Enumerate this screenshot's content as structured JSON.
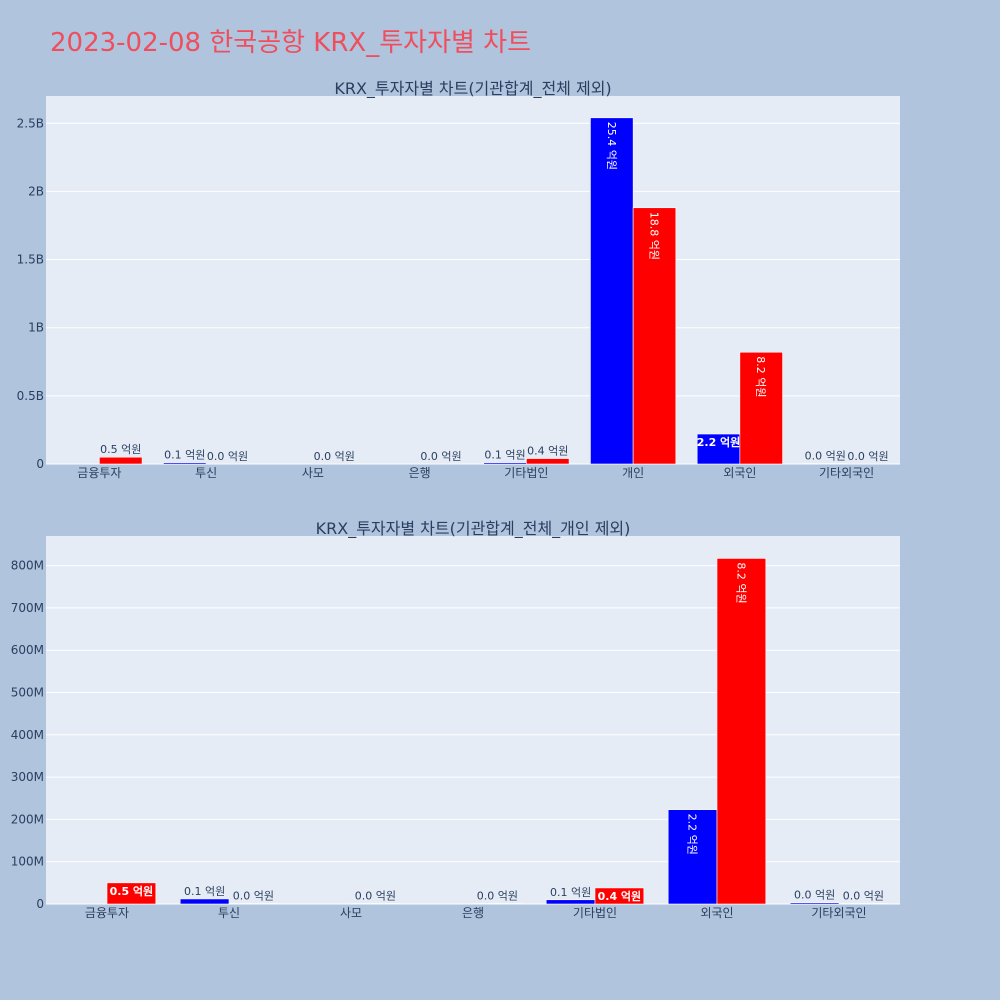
{
  "page": {
    "title": "2023-02-08 한국공항 KRX_투자자별 차트"
  },
  "colors": {
    "background": "#b0c4de",
    "plot_bg": "#e5ecf6",
    "grid": "#ffffff",
    "buy": "#0000ff",
    "sell": "#ff0000",
    "title": "#ef4e5d",
    "text": "#2a3f5f"
  },
  "chart_data": [
    {
      "type": "bar",
      "title": "KRX_투자자별 차트(기관합계_전체 제외)",
      "categories": [
        "금융투자",
        "투신",
        "사모",
        "은행",
        "기타법인",
        "개인",
        "외국인",
        "기타외국인"
      ],
      "series": [
        {
          "color": "#0000ff",
          "values": [
            0,
            10000000,
            0,
            0,
            10000000,
            2540000000,
            220000000,
            3000000
          ],
          "labels": [
            "",
            "0.1 억원",
            "",
            "",
            "0.1 억원",
            "25.4 억원",
            "2.2 억원",
            "0.0 억원"
          ]
        },
        {
          "color": "#ff0000",
          "values": [
            50000000,
            1000000,
            1000000,
            1000000,
            40000000,
            1880000000,
            820000000,
            1000000
          ],
          "labels": [
            "0.5 억원",
            "0.0 억원",
            "0.0 억원",
            "0.0 억원",
            "0.4 억원",
            "18.8 억원",
            "8.2 억원",
            "0.0 억원"
          ]
        }
      ],
      "ylim": [
        0,
        2700000000
      ],
      "yticks": [
        0,
        500000000,
        1000000000,
        1500000000,
        2000000000,
        2500000000
      ],
      "ytick_labels": [
        "0",
        "0.5B",
        "1B",
        "1.5B",
        "2B",
        "2.5B"
      ],
      "grid": true,
      "legend": "none"
    },
    {
      "type": "bar",
      "title": "KRX_투자자별 차트(기관합계_전체_개인 제외)",
      "categories": [
        "금융투자",
        "투신",
        "사모",
        "은행",
        "기타법인",
        "외국인",
        "기타외국인"
      ],
      "series": [
        {
          "color": "#0000ff",
          "values": [
            0,
            12000000,
            0,
            0,
            10000000,
            223000000,
            3000000
          ],
          "labels": [
            "",
            "0.1 억원",
            "",
            "",
            "0.1 억원",
            "2.2 억원",
            "0.0 억원"
          ]
        },
        {
          "color": "#ff0000",
          "values": [
            50000000,
            1000000,
            1000000,
            1000000,
            38000000,
            817000000,
            1000000
          ],
          "labels": [
            "0.5 억원",
            "0.0 억원",
            "0.0 억원",
            "0.0 억원",
            "0.4 억원",
            "8.2 억원",
            "0.0 억원"
          ]
        }
      ],
      "ylim": [
        0,
        870000000
      ],
      "yticks": [
        0,
        100000000,
        200000000,
        300000000,
        400000000,
        500000000,
        600000000,
        700000000,
        800000000
      ],
      "ytick_labels": [
        "0",
        "100M",
        "200M",
        "300M",
        "400M",
        "500M",
        "600M",
        "700M",
        "800M"
      ],
      "grid": true,
      "legend": "none"
    }
  ]
}
